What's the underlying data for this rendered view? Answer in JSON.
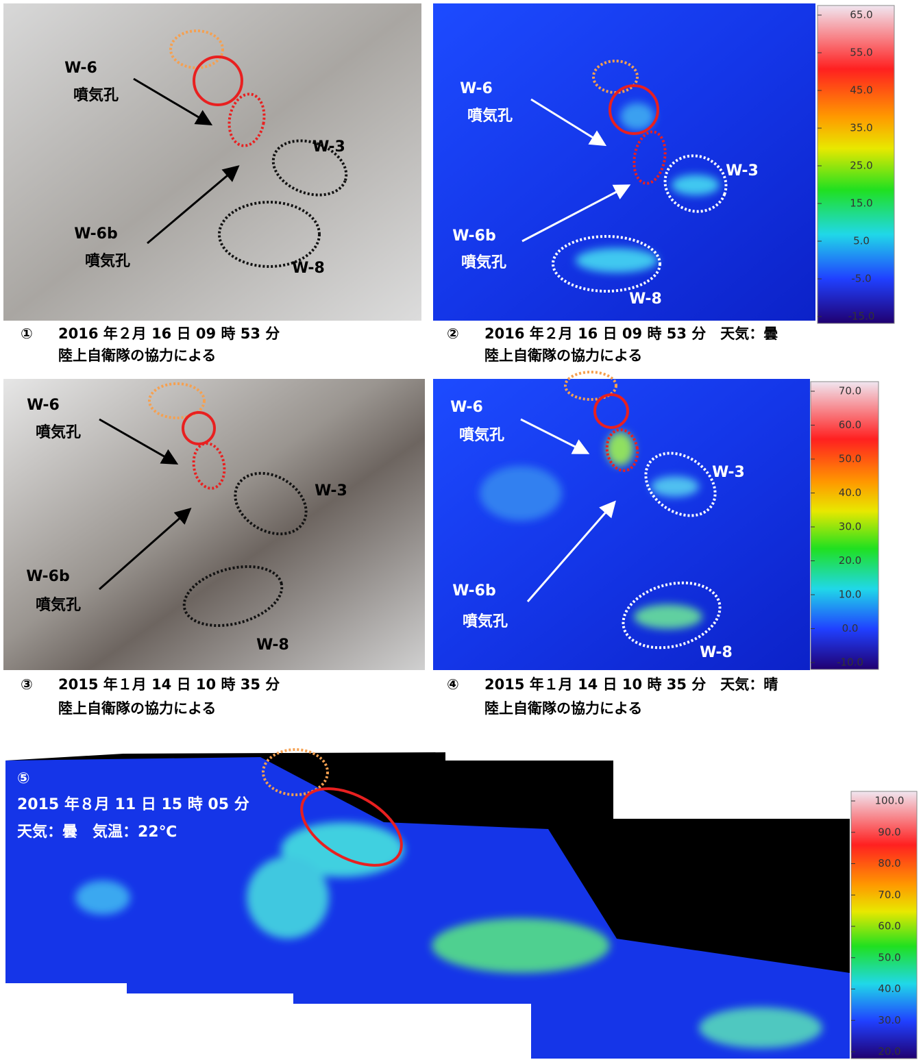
{
  "panels": [
    {
      "labels": {
        "w6": "W-6",
        "w6_vent": "噴気孔",
        "w6b": "W-6b",
        "w6b_vent": "噴気孔",
        "w3": "W-3",
        "w8": "W-8"
      },
      "caption": {
        "number": "①",
        "line1": "2016 年２月 16 日 09 時 53 分",
        "line2": "陸上自衛隊の協力による"
      }
    },
    {
      "labels": {
        "w6": "W-6",
        "w6_vent": "噴気孔",
        "w6b": "W-6b",
        "w6b_vent": "噴気孔",
        "w3": "W-3",
        "w8": "W-8"
      },
      "caption": {
        "number": "②",
        "line1": "2016 年２月 16 日 09 時 53 分　天気：曇",
        "line2": "陸上自衛隊の協力による"
      },
      "scale": [
        "65.0",
        "55.0",
        "45.0",
        "35.0",
        "25.0",
        "15.0",
        "5.0",
        "-5.0",
        "-15.0"
      ]
    },
    {
      "labels": {
        "w6": "W-6",
        "w6_vent": "噴気孔",
        "w6b": "W-6b",
        "w6b_vent": "噴気孔",
        "w3": "W-3",
        "w8": "W-8"
      },
      "caption": {
        "number": "③",
        "line1": "2015 年１月 14 日 10 時 35 分",
        "line2": "陸上自衛隊の協力による"
      }
    },
    {
      "labels": {
        "w6": "W-6",
        "w6_vent": "噴気孔",
        "w6b": "W-6b",
        "w6b_vent": "噴気孔",
        "w3": "W-3",
        "w8": "W-8"
      },
      "caption": {
        "number": "④",
        "line1": "2015 年１月 14 日 10 時 35 分　天気：晴",
        "line2": "陸上自衛隊の協力による"
      },
      "scale": [
        "70.0",
        "60.0",
        "50.0",
        "40.0",
        "30.0",
        "20.0",
        "10.0",
        "0.0",
        "-10.0"
      ]
    }
  ],
  "panorama": {
    "number": "⑤",
    "line1": "2015 年８月 11 日 15 時 05 分",
    "line2": "天気：曇　気温：22℃",
    "scale": [
      "100.0",
      "90.0",
      "80.0",
      "70.0",
      "60.0",
      "50.0",
      "40.0",
      "30.0",
      "20.0"
    ]
  }
}
